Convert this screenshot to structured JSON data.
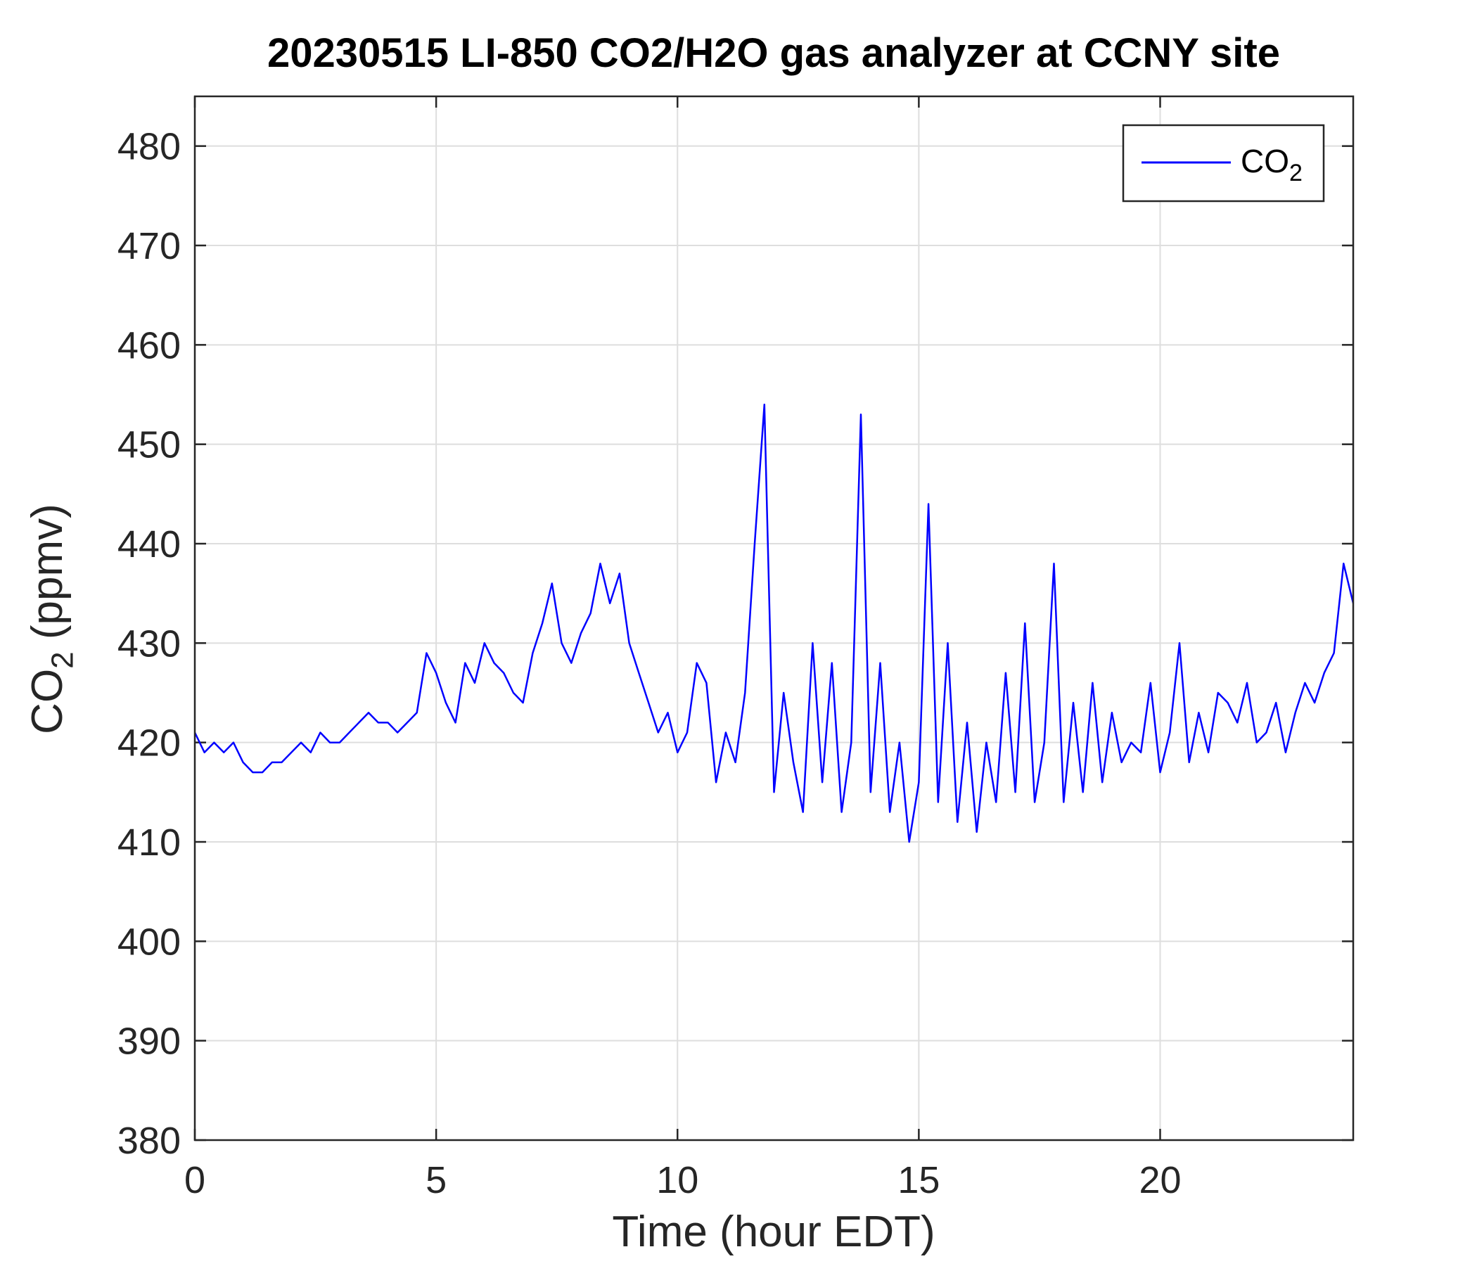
{
  "chart_data": {
    "type": "line",
    "title": "20230515 LI-850 CO2/H2O gas analyzer at CCNY site",
    "xlabel": "Time (hour EDT)",
    "ylabel": "CO2 (ppmv)",
    "xlim": [
      0,
      24
    ],
    "ylim": [
      380,
      485
    ],
    "xticks": [
      0,
      5,
      10,
      15,
      20
    ],
    "yticks": [
      380,
      390,
      400,
      410,
      420,
      430,
      440,
      450,
      460,
      470,
      480
    ],
    "grid": true,
    "legend": "northeast",
    "x": [
      0,
      0.2,
      0.4,
      0.6,
      0.8,
      1,
      1.2,
      1.4,
      1.6,
      1.8,
      2,
      2.2,
      2.4,
      2.6,
      2.8,
      3,
      3.2,
      3.4,
      3.6,
      3.8,
      4,
      4.2,
      4.4,
      4.6,
      4.8,
      5,
      5.2,
      5.4,
      5.6,
      5.8,
      6,
      6.2,
      6.4,
      6.6,
      6.8,
      7,
      7.2,
      7.4,
      7.6,
      7.8,
      8,
      8.2,
      8.4,
      8.6,
      8.8,
      9,
      9.2,
      9.4,
      9.6,
      9.8,
      10,
      10.2,
      10.4,
      10.6,
      10.8,
      11,
      11.2,
      11.4,
      11.6,
      11.8,
      12,
      12.2,
      12.4,
      12.6,
      12.8,
      13,
      13.2,
      13.4,
      13.6,
      13.8,
      14,
      14.2,
      14.4,
      14.6,
      14.8,
      15,
      15.2,
      15.4,
      15.6,
      15.8,
      16,
      16.2,
      16.4,
      16.6,
      16.8,
      17,
      17.2,
      17.4,
      17.6,
      17.8,
      18,
      18.2,
      18.4,
      18.6,
      18.8,
      19,
      19.2,
      19.4,
      19.6,
      19.8,
      20,
      20.2,
      20.4,
      20.6,
      20.8,
      21,
      21.2,
      21.4,
      21.6,
      21.8,
      22,
      22.2,
      22.4,
      22.6,
      22.8,
      23,
      23.2,
      23.4,
      23.6,
      23.8,
      24
    ],
    "series": [
      {
        "name": "CO2",
        "color": "#0000ff",
        "values": [
          421,
          419,
          420,
          419,
          420,
          418,
          417,
          417,
          418,
          418,
          419,
          420,
          419,
          421,
          420,
          420,
          421,
          422,
          423,
          422,
          422,
          421,
          422,
          423,
          429,
          427,
          424,
          422,
          428,
          426,
          430,
          428,
          427,
          425,
          424,
          429,
          432,
          436,
          430,
          428,
          431,
          433,
          438,
          434,
          437,
          430,
          427,
          424,
          421,
          423,
          419,
          421,
          428,
          426,
          416,
          421,
          418,
          425,
          440,
          454,
          415,
          425,
          418,
          413,
          430,
          416,
          428,
          413,
          420,
          453,
          415,
          428,
          413,
          420,
          410,
          416,
          444,
          414,
          430,
          412,
          422,
          411,
          420,
          414,
          427,
          415,
          432,
          414,
          420,
          438,
          414,
          424,
          415,
          426,
          416,
          423,
          418,
          420,
          419,
          426,
          417,
          421,
          430,
          418,
          423,
          419,
          425,
          424,
          422,
          426,
          420,
          421,
          424,
          419,
          423,
          426,
          424,
          427,
          429,
          438,
          434
        ]
      }
    ]
  }
}
